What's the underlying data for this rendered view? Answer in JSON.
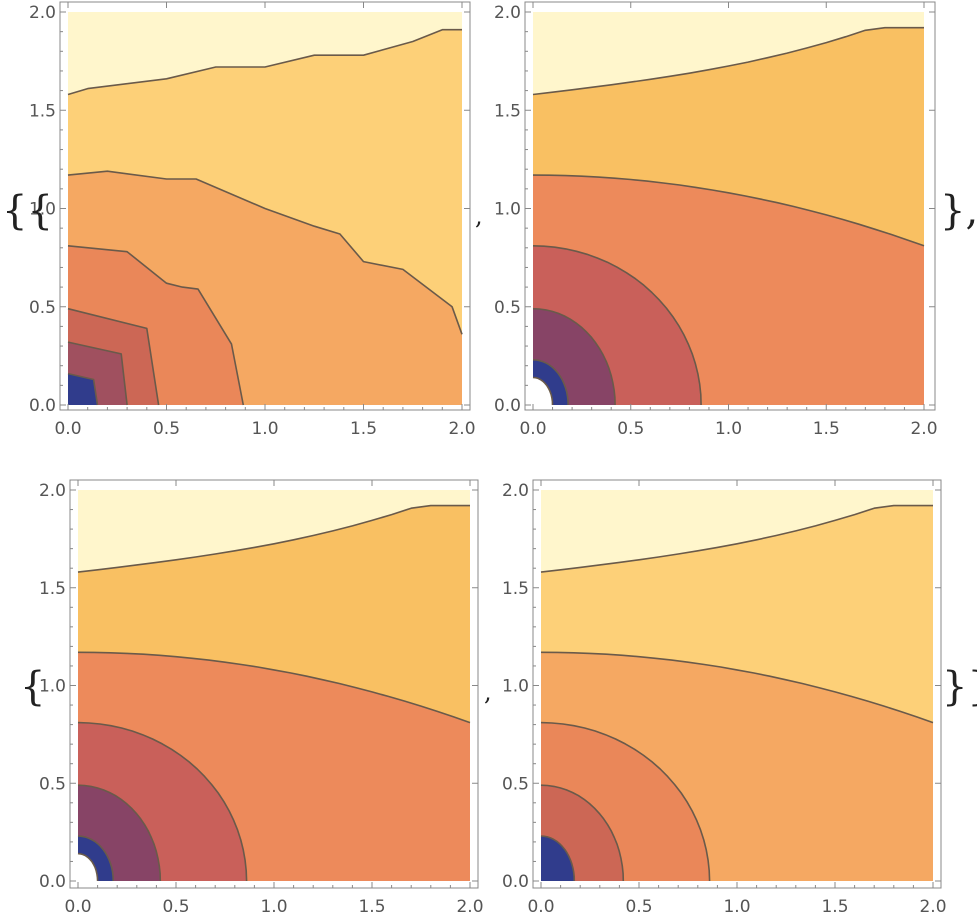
{
  "chart_data": [
    {
      "type": "contour",
      "xlim": [
        0,
        2
      ],
      "ylim": [
        0,
        2
      ],
      "xticks": [
        "0.0",
        "0.5",
        "1.0",
        "1.5",
        "2.0"
      ],
      "yticks": [
        "0.0",
        "0.5",
        "1.0",
        "1.5",
        "2.0"
      ],
      "regions": [
        {
          "color": "#fff6cc",
          "boundary": [
            [
              0,
              1.58
            ],
            [
              0.1,
              1.61
            ],
            [
              0.5,
              1.66
            ],
            [
              0.75,
              1.72
            ],
            [
              1.0,
              1.72
            ],
            [
              1.25,
              1.78
            ],
            [
              1.5,
              1.78
            ],
            [
              1.75,
              1.85
            ],
            [
              1.9,
              1.91
            ],
            [
              2,
              1.91
            ]
          ]
        },
        {
          "color": "#fdd078",
          "boundary": [
            [
              0,
              1.17
            ],
            [
              0.2,
              1.19
            ],
            [
              0.5,
              1.15
            ],
            [
              0.65,
              1.15
            ],
            [
              1.0,
              1.0
            ],
            [
              1.25,
              0.91
            ],
            [
              1.38,
              0.87
            ],
            [
              1.5,
              0.73
            ],
            [
              1.7,
              0.69
            ],
            [
              1.95,
              0.5
            ],
            [
              2,
              0.36
            ]
          ]
        },
        {
          "color": "#f5a862",
          "boundary": [
            [
              0,
              0.81
            ],
            [
              0.3,
              0.78
            ],
            [
              0.5,
              0.62
            ],
            [
              0.58,
              0.6
            ],
            [
              0.66,
              0.59
            ],
            [
              0.83,
              0.31
            ],
            [
              0.89,
              0
            ]
          ]
        },
        {
          "color": "#ea8759",
          "boundary": [
            [
              0,
              0.49
            ],
            [
              0.4,
              0.39
            ],
            [
              0.46,
              0
            ]
          ]
        },
        {
          "color": "#cc6755",
          "boundary": [
            [
              0,
              0.32
            ],
            [
              0.27,
              0.26
            ],
            [
              0.3,
              0
            ]
          ]
        },
        {
          "color": "#a0505f",
          "boundary": [
            [
              0,
              0.16
            ],
            [
              0.13,
              0.13
            ],
            [
              0.15,
              0
            ]
          ]
        },
        {
          "color": "#303c8c",
          "boundary": []
        }
      ]
    },
    {
      "type": "contour",
      "xlim": [
        0,
        2
      ],
      "ylim": [
        0,
        2
      ],
      "xticks": [
        "0.0",
        "0.5",
        "1.0",
        "1.5",
        "2.0"
      ],
      "yticks": [
        "0.0",
        "0.5",
        "1.0",
        "1.5",
        "2.0"
      ],
      "regions": [
        {
          "color": "#fff6cc",
          "boundary": "top"
        },
        {
          "color": "#f9c062",
          "boundary": "r2"
        },
        {
          "color": "#ed8a5b",
          "boundary": "r3"
        },
        {
          "color": "#c9605a",
          "boundary": "r4"
        },
        {
          "color": "#874466",
          "boundary": "r5"
        },
        {
          "color": "#303c8c",
          "boundary": "r6"
        },
        {
          "color": "#ffffff",
          "boundary": "hole"
        }
      ]
    },
    {
      "type": "contour",
      "xlim": [
        0,
        2
      ],
      "ylim": [
        0,
        2
      ],
      "xticks": [
        "0.0",
        "0.5",
        "1.0",
        "1.5",
        "2.0"
      ],
      "yticks": [
        "0.0",
        "0.5",
        "1.0",
        "1.5",
        "2.0"
      ],
      "regions": [
        {
          "color": "#fff6cc",
          "boundary": "top"
        },
        {
          "color": "#f9c062",
          "boundary": "r2"
        },
        {
          "color": "#ed8a5b",
          "boundary": "r3"
        },
        {
          "color": "#c9605a",
          "boundary": "r4"
        },
        {
          "color": "#874466",
          "boundary": "r5"
        },
        {
          "color": "#303c8c",
          "boundary": "r6"
        },
        {
          "color": "#ffffff",
          "boundary": "hole"
        }
      ]
    },
    {
      "type": "contour",
      "xlim": [
        0,
        2
      ],
      "ylim": [
        0,
        2
      ],
      "xticks": [
        "0.0",
        "0.5",
        "1.0",
        "1.5",
        "2.0"
      ],
      "yticks": [
        "0.0",
        "0.5",
        "1.0",
        "1.5",
        "2.0"
      ],
      "regions": [
        {
          "color": "#fff6cc",
          "boundary": "top"
        },
        {
          "color": "#fdd078",
          "boundary": "r2"
        },
        {
          "color": "#f5a862",
          "boundary": "r3"
        },
        {
          "color": "#ea8759",
          "boundary": "r4"
        },
        {
          "color": "#cc6755",
          "boundary": "r5"
        },
        {
          "color": "#303c8c",
          "boundary": "r6"
        }
      ]
    }
  ],
  "brackets": {
    "row1_open": "{{",
    "row1_close": "},",
    "row2_open": "{",
    "row2_close": "}}",
    "comma": ","
  }
}
